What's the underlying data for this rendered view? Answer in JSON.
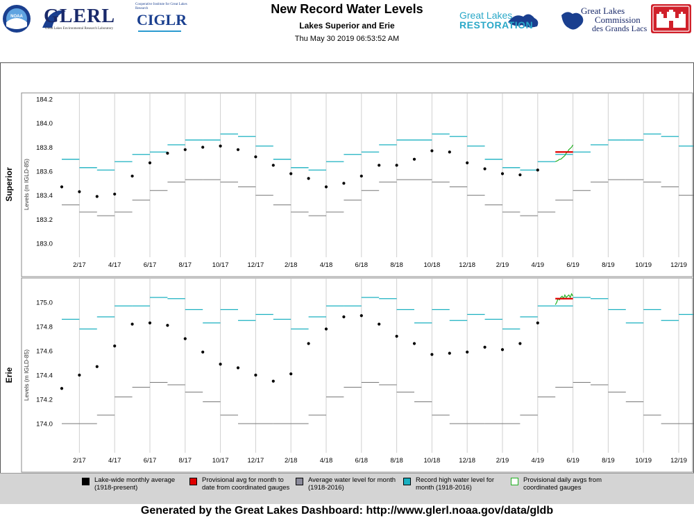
{
  "header": {
    "title": "New Record Water Levels",
    "subtitle": "Lakes Superior and Erie",
    "timestamp": "Thu May 30 2019 06:53:52 AM",
    "logos": {
      "noaa": "NOAA",
      "glerl": "GLERL",
      "glerl_sub": "Great Lakes Environmental Research Laboratory",
      "ciglr_top": "Cooperative Institute for Great Lakes Research",
      "ciglr": "CIGLR",
      "glri_1": "Great Lakes",
      "glri_2": "RESTORATION",
      "glc_1": "Great Lakes",
      "glc_2": "Commission",
      "glc_3": "des Grands Lacs"
    }
  },
  "colors": {
    "record_high": "#1ab0c0",
    "average": "#777777",
    "provisional_avg": "#e00000",
    "provisional_daily": "#20b020",
    "monthly": "#000000",
    "legend_bg": "#d4d4d4"
  },
  "legend": [
    {
      "label": "Lake-wide monthly average (1918-present)",
      "swatch": "#000000"
    },
    {
      "label": "Provisional avg for month to date from coordinated gauges",
      "swatch": "#e00000"
    },
    {
      "label": "Average water level for month (1918-2016)",
      "swatch": "#8a8a9a"
    },
    {
      "label": "Record high water level for month (1918-2016)",
      "swatch": "#1ab0c0"
    },
    {
      "label": "Provisional daily avgs from coordinated gauges",
      "swatch": "#ffffff",
      "border": "#20b020"
    }
  ],
  "footer": "Generated by the Great Lakes Dashboard: http://www.glerl.noaa.gov/data/gldb",
  "chart_data": [
    {
      "type": "scatter",
      "lake_label": "Superior",
      "ylabel": "Levels (m IGLD-85)",
      "ylim": [
        182.95,
        184.25
      ],
      "yticks": [
        183.0,
        183.2,
        183.4,
        183.6,
        183.8,
        184.0,
        184.2
      ],
      "xticks": [
        "2/17",
        "4/17",
        "6/17",
        "8/17",
        "10/17",
        "12/17",
        "2/18",
        "4/18",
        "6/18",
        "8/18",
        "10/18",
        "12/18",
        "2/19",
        "4/19",
        "6/19",
        "8/19",
        "10/19",
        "12/19"
      ],
      "record_high_by_month": [
        183.7,
        183.63,
        183.61,
        183.68,
        183.74,
        183.76,
        183.82,
        183.86,
        183.86,
        183.91,
        183.89,
        183.81
      ],
      "average_by_month": [
        183.32,
        183.26,
        183.23,
        183.26,
        183.36,
        183.44,
        183.51,
        183.53,
        183.53,
        183.51,
        183.47,
        183.4
      ],
      "monthly_averages": [
        183.47,
        183.43,
        183.39,
        183.41,
        183.56,
        183.67,
        183.75,
        183.78,
        183.8,
        183.81,
        183.78,
        183.72,
        183.65,
        183.58,
        183.54,
        183.47,
        183.5,
        183.56,
        183.65,
        183.65,
        183.7,
        183.77,
        183.76,
        183.67,
        183.62,
        183.58,
        183.57,
        183.61
      ],
      "provisional_month_avg": {
        "month": "5/19",
        "value": 183.76
      },
      "provisional_daily": [
        183.68,
        183.685,
        183.69,
        183.7,
        183.7,
        183.71,
        183.72,
        183.73,
        183.75,
        183.76,
        183.78,
        183.79,
        183.8,
        183.82
      ]
    },
    {
      "type": "scatter",
      "lake_label": "Erie",
      "ylabel": "Levels (m IGLD-85)",
      "ylim": [
        173.95,
        175.12
      ],
      "yticks": [
        174.0,
        174.2,
        174.4,
        174.6,
        174.8,
        175.0
      ],
      "xticks": [
        "2/17",
        "4/17",
        "6/17",
        "8/17",
        "10/17",
        "12/17",
        "2/18",
        "4/18",
        "6/18",
        "8/18",
        "10/18",
        "12/18",
        "2/19",
        "4/19",
        "6/19",
        "8/19",
        "10/19",
        "12/19"
      ],
      "record_high_by_month": [
        174.86,
        174.78,
        174.88,
        174.97,
        174.97,
        175.04,
        175.03,
        174.94,
        174.83,
        174.94,
        174.85,
        174.9
      ],
      "average_by_month": [
        174.0,
        174.0,
        174.07,
        174.22,
        174.3,
        174.34,
        174.32,
        174.26,
        174.18,
        174.07,
        174.0,
        174.0
      ],
      "monthly_averages": [
        174.29,
        174.4,
        174.47,
        174.64,
        174.82,
        174.83,
        174.81,
        174.7,
        174.59,
        174.49,
        174.46,
        174.4,
        174.35,
        174.41,
        174.66,
        174.78,
        174.88,
        174.89,
        174.82,
        174.72,
        174.66,
        174.57,
        174.58,
        174.59,
        174.63,
        174.61,
        174.66,
        174.83
      ],
      "provisional_month_avg": {
        "month": "5/19",
        "value": 175.03
      },
      "provisional_daily": [
        174.98,
        175.0,
        175.03,
        175.02,
        175.04,
        175.05,
        175.03,
        175.06,
        175.04,
        175.05,
        175.06,
        175.04,
        175.07,
        175.05
      ]
    }
  ]
}
